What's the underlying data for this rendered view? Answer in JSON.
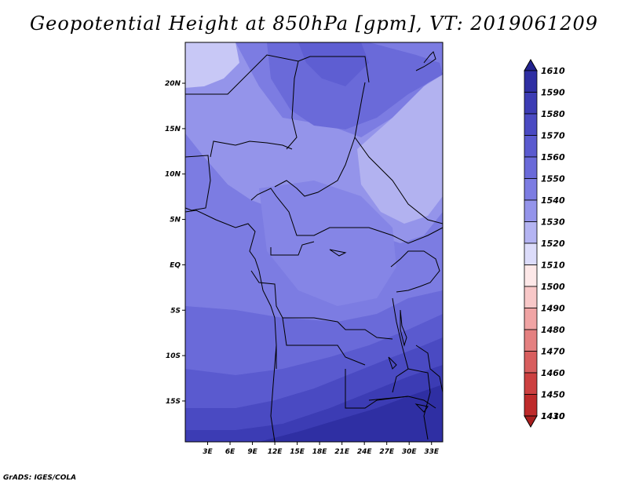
{
  "title": "Geopotential Height at 850hPa [gpm], VT: 2019061209",
  "footer": "GrADS: IGES/COLA",
  "map": {
    "lat_labels": [
      "20N",
      "15N",
      "10N",
      "5N",
      "EQ",
      "5S",
      "10S",
      "15S"
    ],
    "lon_labels": [
      "3E",
      "6E",
      "9E",
      "12E",
      "15E",
      "18E",
      "21E",
      "24E",
      "27E",
      "30E",
      "33E"
    ],
    "lat_values": [
      20,
      15,
      10,
      5,
      0,
      -5,
      -10,
      -15
    ],
    "lon_values": [
      3,
      6,
      9,
      12,
      15,
      18,
      21,
      24,
      27,
      30,
      33
    ],
    "extent": {
      "lon": [
        0,
        34.5
      ],
      "lat": [
        -19.5,
        24.5
      ]
    }
  },
  "legend": {
    "levels": [
      "1610",
      "1590",
      "1580",
      "1570",
      "1560",
      "1550",
      "1540",
      "1530",
      "1520",
      "1510",
      "1500",
      "1490",
      "1480",
      "1470",
      "1460",
      "1450",
      "1430",
      "1410"
    ],
    "colors": [
      "#23238f",
      "#2f2fa3",
      "#3c3cb4",
      "#4a4ac2",
      "#5a5acf",
      "#6a6ad9",
      "#7c7ce2",
      "#9494ea",
      "#b4b4f2",
      "#dcdcfa",
      "#fde8e8",
      "#f8c8c8",
      "#f0a4a4",
      "#e48080",
      "#d85e5e",
      "#cc4040",
      "#be2a2a",
      "#a81e1e"
    ]
  }
}
